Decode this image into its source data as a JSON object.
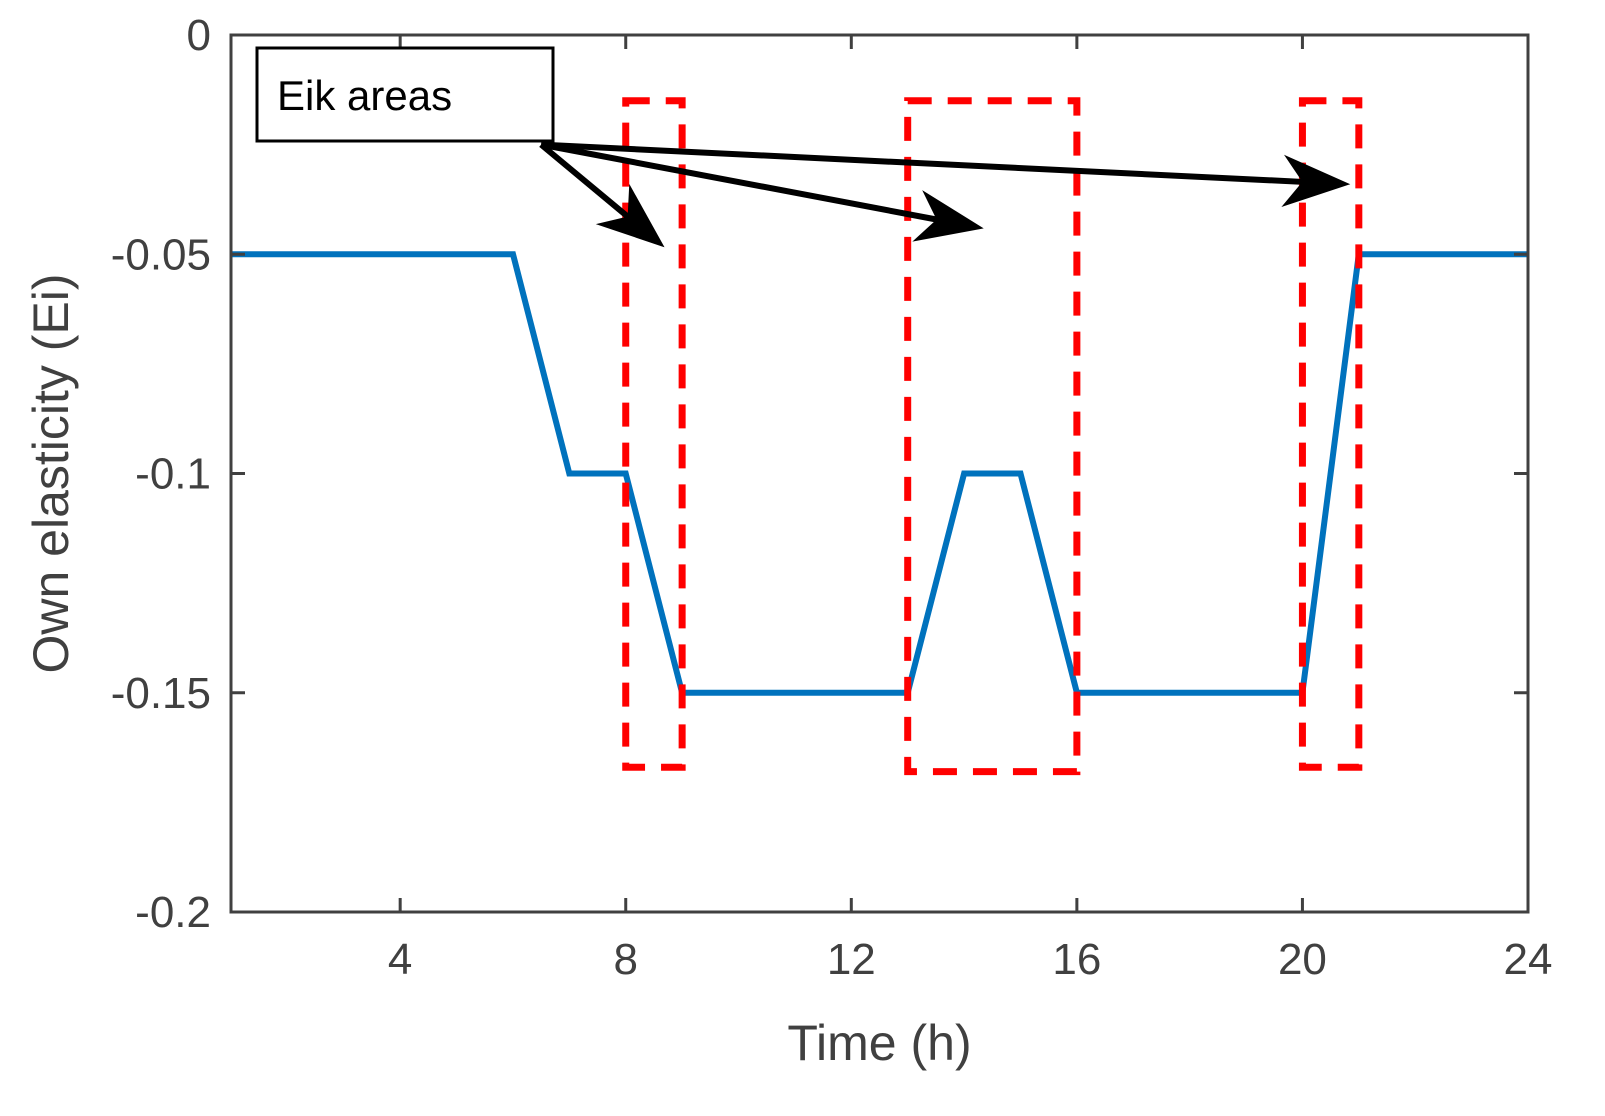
{
  "chart_data": {
    "type": "line",
    "title": "",
    "xlabel": "Time (h)",
    "ylabel": "Own elasticity (Ei)",
    "xlim": [
      1,
      24
    ],
    "ylim": [
      -0.2,
      0
    ],
    "xticks": [
      4,
      8,
      12,
      16,
      20,
      24
    ],
    "xtick_labels": [
      "4",
      "8",
      "12",
      "16",
      "20",
      "24"
    ],
    "yticks": [
      0,
      -0.05,
      -0.1,
      -0.15,
      -0.2
    ],
    "ytick_labels": [
      "0",
      "-0.05",
      "-0.1",
      "-0.15",
      "-0.2"
    ],
    "grid": false,
    "series": [
      {
        "name": "Own elasticity",
        "color": "#0072BD",
        "x": [
          1,
          2,
          3,
          4,
          5,
          6,
          7,
          8,
          9,
          10,
          11,
          12,
          13,
          14,
          15,
          16,
          17,
          18,
          19,
          20,
          21,
          22,
          23,
          24
        ],
        "y": [
          -0.05,
          -0.05,
          -0.05,
          -0.05,
          -0.05,
          -0.05,
          -0.1,
          -0.1,
          -0.15,
          -0.15,
          -0.15,
          -0.15,
          -0.15,
          -0.1,
          -0.1,
          -0.15,
          -0.15,
          -0.15,
          -0.15,
          -0.15,
          -0.05,
          -0.05,
          -0.05,
          -0.05
        ]
      }
    ],
    "highlight_regions": [
      {
        "x0": 8,
        "x1": 9,
        "y0": -0.167,
        "y1": -0.015
      },
      {
        "x0": 13,
        "x1": 16,
        "y0": -0.168,
        "y1": -0.015
      },
      {
        "x0": 20,
        "x1": 21,
        "y0": -0.167,
        "y1": -0.015
      }
    ],
    "highlight_color": "#FF0000",
    "annotation": {
      "text": "Eik areas",
      "origin": {
        "x": 6.5,
        "y": -0.025
      },
      "targets": [
        {
          "x": 8.65,
          "y": -0.048
        },
        {
          "x": 14.3,
          "y": -0.044
        },
        {
          "x": 20.8,
          "y": -0.034
        }
      ]
    },
    "axis_color": "#404040",
    "background": "#FFFFFF"
  }
}
